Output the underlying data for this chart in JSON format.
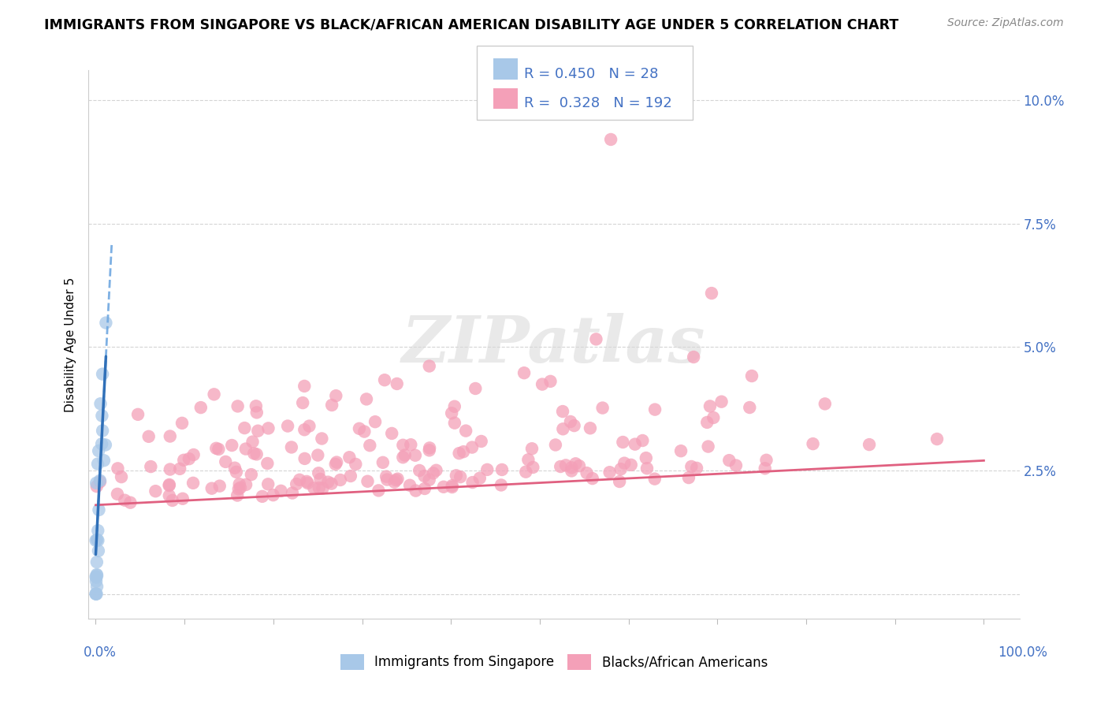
{
  "title": "IMMIGRANTS FROM SINGAPORE VS BLACK/AFRICAN AMERICAN DISABILITY AGE UNDER 5 CORRELATION CHART",
  "source": "Source: ZipAtlas.com",
  "ylabel": "Disability Age Under 5",
  "legend_blue_r": "0.450",
  "legend_blue_n": "28",
  "legend_pink_r": "0.328",
  "legend_pink_n": "192",
  "blue_color": "#a8c8e8",
  "pink_color": "#f4a0b8",
  "blue_line_color": "#3070b8",
  "pink_line_color": "#e06080",
  "blue_line_dashed_color": "#70a8e0"
}
